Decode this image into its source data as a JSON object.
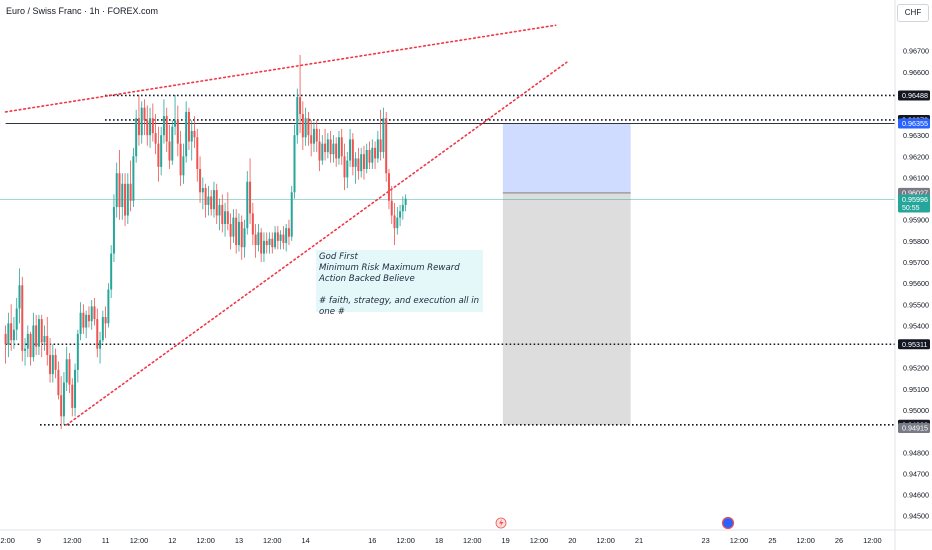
{
  "header": {
    "symbol_title": "Euro / Swiss Franc · 1h · FOREX.com",
    "currency": "CHF"
  },
  "note": {
    "lines": [
      "God First",
      "Minimum Risk Maximum Reward",
      "Action Backed Believe",
      "",
      "# faith, strategy, and execution all in",
      "one #"
    ]
  },
  "colors": {
    "bull": "#26a69a",
    "bear": "#ef5350",
    "trendline": "#f23645",
    "level_line": "#131722",
    "profit_zone": "#c7d6ff",
    "loss_zone": "#d9d9d9",
    "current_price_line": "#26a69a"
  },
  "chart_data": {
    "type": "candlestick",
    "ylim": [
      0.9443,
      0.9679
    ],
    "y_ticks": [
      "0.96700",
      "0.96600",
      "0.96300",
      "0.96200",
      "0.96100",
      "0.95900",
      "0.95800",
      "0.95700",
      "0.95600",
      "0.95500",
      "0.95400",
      "0.95200",
      "0.95100",
      "0.95000",
      "0.94800",
      "0.94700",
      "0.94600",
      "0.94500"
    ],
    "x_ticks": [
      {
        "label": "12:00",
        "bar": 0
      },
      {
        "label": "9",
        "bar": 12
      },
      {
        "label": "12:00",
        "bar": 24
      },
      {
        "label": "11",
        "bar": 36
      },
      {
        "label": "12:00",
        "bar": 48
      },
      {
        "label": "12",
        "bar": 60
      },
      {
        "label": "12:00",
        "bar": 72
      },
      {
        "label": "13",
        "bar": 84
      },
      {
        "label": "12:00",
        "bar": 96
      },
      {
        "label": "14",
        "bar": 108
      },
      {
        "label": "16",
        "bar": 132
      },
      {
        "label": "12:00",
        "bar": 144
      },
      {
        "label": "18",
        "bar": 156
      },
      {
        "label": "12:00",
        "bar": 168
      },
      {
        "label": "19",
        "bar": 180
      },
      {
        "label": "12:00",
        "bar": 192
      },
      {
        "label": "20",
        "bar": 204
      },
      {
        "label": "12:00",
        "bar": 216
      },
      {
        "label": "21",
        "bar": 228
      },
      {
        "label": "23",
        "bar": 252
      },
      {
        "label": "12:00",
        "bar": 264
      },
      {
        "label": "25",
        "bar": 276
      },
      {
        "label": "12:00",
        "bar": 288
      },
      {
        "label": "26",
        "bar": 300
      },
      {
        "label": "12:00",
        "bar": 312
      }
    ],
    "price_labels": [
      {
        "value": 0.96488,
        "label": "0.96488",
        "bg": "#131722",
        "fg": "#ffffff"
      },
      {
        "value": 0.96372,
        "label": "0.96372",
        "bg": "#131722",
        "fg": "#ffffff"
      },
      {
        "value": 0.96355,
        "label": "0.96355",
        "bg": "#2962ff",
        "fg": "#ffffff"
      },
      {
        "value": 0.96027,
        "label": "0.96027",
        "bg": "#787b86",
        "fg": "#ffffff"
      },
      {
        "value": 0.95996,
        "label": "0.95996",
        "bg": "#26a69a",
        "fg": "#ffffff",
        "sub": "50:55"
      },
      {
        "value": 0.95311,
        "label": "0.95311",
        "bg": "#131722",
        "fg": "#ffffff"
      },
      {
        "value": 0.9493,
        "label": "0.94930",
        "bg": "#131722",
        "fg": "#ffffff"
      },
      {
        "value": 0.94915,
        "label": "0.94915",
        "bg": "#787b86",
        "fg": "#ffffff"
      }
    ],
    "horizontal_levels": [
      {
        "value": 0.96488,
        "x_start_bar": 38
      },
      {
        "value": 0.96372,
        "x_start_bar": 38
      },
      {
        "value": 0.96355,
        "x_start_bar": 0,
        "solid": true
      },
      {
        "value": 0.95311,
        "x_start_bar": 0
      },
      {
        "value": 0.9493,
        "x_start_bar": 14
      }
    ],
    "trendlines": [
      {
        "from": [
          0,
          0.9641
        ],
        "to": [
          198,
          0.9682
        ]
      },
      {
        "from": [
          22,
          0.9493
        ],
        "to": [
          202,
          0.96645
        ]
      }
    ],
    "position": {
      "entry": 0.96027,
      "target": 0.96355,
      "stop": 0.9493,
      "bar_start": 179,
      "bar_end": 225
    },
    "current_price": 0.95996,
    "candles": [
      [
        0.9536,
        0.954,
        0.9522,
        0.9531
      ],
      [
        0.9531,
        0.9546,
        0.9525,
        0.9541
      ],
      [
        0.9541,
        0.955,
        0.9528,
        0.9533
      ],
      [
        0.9533,
        0.9544,
        0.9529,
        0.9538
      ],
      [
        0.9538,
        0.9553,
        0.9533,
        0.9548
      ],
      [
        0.9548,
        0.9567,
        0.9541,
        0.9559
      ],
      [
        0.9559,
        0.9563,
        0.9523,
        0.9528
      ],
      [
        0.9528,
        0.9534,
        0.9521,
        0.9529
      ],
      [
        0.9529,
        0.954,
        0.9525,
        0.9536
      ],
      [
        0.9536,
        0.9537,
        0.9521,
        0.9525
      ],
      [
        0.9525,
        0.9546,
        0.9523,
        0.954
      ],
      [
        0.954,
        0.9545,
        0.9526,
        0.953
      ],
      [
        0.953,
        0.9545,
        0.9526,
        0.9543
      ],
      [
        0.9543,
        0.9545,
        0.9525,
        0.9532
      ],
      [
        0.9532,
        0.954,
        0.9528,
        0.9535
      ],
      [
        0.9535,
        0.9544,
        0.9521,
        0.9526
      ],
      [
        0.9526,
        0.9534,
        0.9513,
        0.9517
      ],
      [
        0.9517,
        0.9531,
        0.9513,
        0.9526
      ],
      [
        0.9526,
        0.9529,
        0.9515,
        0.9519
      ],
      [
        0.9519,
        0.9523,
        0.9505,
        0.9507
      ],
      [
        0.9507,
        0.9516,
        0.9491,
        0.9497
      ],
      [
        0.9497,
        0.9518,
        0.9493,
        0.9513
      ],
      [
        0.9513,
        0.953,
        0.9509,
        0.9524
      ],
      [
        0.9524,
        0.9527,
        0.9508,
        0.9512
      ],
      [
        0.9512,
        0.9515,
        0.9497,
        0.9501
      ],
      [
        0.9501,
        0.9522,
        0.9497,
        0.9519
      ],
      [
        0.9519,
        0.9538,
        0.9513,
        0.9536
      ],
      [
        0.9536,
        0.9551,
        0.9533,
        0.9546
      ],
      [
        0.9546,
        0.955,
        0.9536,
        0.9539
      ],
      [
        0.9539,
        0.9547,
        0.9534,
        0.9545
      ],
      [
        0.9545,
        0.9549,
        0.9539,
        0.9542
      ],
      [
        0.9542,
        0.9552,
        0.9538,
        0.9549
      ],
      [
        0.9549,
        0.9553,
        0.954,
        0.9543
      ],
      [
        0.9543,
        0.9548,
        0.9525,
        0.9529
      ],
      [
        0.9529,
        0.9537,
        0.9522,
        0.9533
      ],
      [
        0.9533,
        0.9547,
        0.9532,
        0.9544
      ],
      [
        0.9544,
        0.9549,
        0.9534,
        0.9541
      ],
      [
        0.9541,
        0.956,
        0.9539,
        0.9557
      ],
      [
        0.9557,
        0.9578,
        0.9553,
        0.9574
      ],
      [
        0.9574,
        0.9602,
        0.957,
        0.9596
      ],
      [
        0.9596,
        0.9617,
        0.9591,
        0.9612
      ],
      [
        0.9612,
        0.9623,
        0.959,
        0.9596
      ],
      [
        0.9596,
        0.9612,
        0.959,
        0.9607
      ],
      [
        0.9607,
        0.9612,
        0.9587,
        0.9592
      ],
      [
        0.9592,
        0.9612,
        0.9588,
        0.9607
      ],
      [
        0.9607,
        0.9618,
        0.9594,
        0.9599
      ],
      [
        0.9599,
        0.9624,
        0.9596,
        0.962
      ],
      [
        0.962,
        0.9642,
        0.9617,
        0.9638
      ],
      [
        0.9638,
        0.9649,
        0.9625,
        0.963
      ],
      [
        0.963,
        0.9646,
        0.9626,
        0.9643
      ],
      [
        0.9643,
        0.9647,
        0.963,
        0.9637
      ],
      [
        0.9637,
        0.9644,
        0.9625,
        0.963
      ],
      [
        0.963,
        0.9643,
        0.9624,
        0.9638
      ],
      [
        0.9638,
        0.9645,
        0.9627,
        0.9631
      ],
      [
        0.9631,
        0.964,
        0.9621,
        0.9626
      ],
      [
        0.9626,
        0.9634,
        0.9608,
        0.9615
      ],
      [
        0.9615,
        0.9634,
        0.9611,
        0.963
      ],
      [
        0.963,
        0.9647,
        0.9626,
        0.9639
      ],
      [
        0.9639,
        0.9643,
        0.9622,
        0.9627
      ],
      [
        0.9627,
        0.9635,
        0.9614,
        0.9618
      ],
      [
        0.9618,
        0.9637,
        0.9616,
        0.9634
      ],
      [
        0.9634,
        0.9649,
        0.963,
        0.9637
      ],
      [
        0.9637,
        0.9644,
        0.962,
        0.9626
      ],
      [
        0.9626,
        0.9632,
        0.9606,
        0.9611
      ],
      [
        0.9611,
        0.9626,
        0.9607,
        0.962
      ],
      [
        0.962,
        0.9646,
        0.9617,
        0.9641
      ],
      [
        0.9641,
        0.9643,
        0.9623,
        0.9627
      ],
      [
        0.9627,
        0.9637,
        0.9618,
        0.9632
      ],
      [
        0.9632,
        0.9639,
        0.9624,
        0.9629
      ],
      [
        0.9629,
        0.9633,
        0.9608,
        0.9614
      ],
      [
        0.9614,
        0.962,
        0.9598,
        0.9603
      ],
      [
        0.9603,
        0.961,
        0.9595,
        0.9605
      ],
      [
        0.9605,
        0.9607,
        0.9591,
        0.9597
      ],
      [
        0.9597,
        0.9606,
        0.9592,
        0.9601
      ],
      [
        0.9601,
        0.9604,
        0.9592,
        0.9595
      ],
      [
        0.9595,
        0.9608,
        0.9591,
        0.9604
      ],
      [
        0.9604,
        0.9607,
        0.9588,
        0.9592
      ],
      [
        0.9592,
        0.96,
        0.9585,
        0.9597
      ],
      [
        0.9597,
        0.9602,
        0.9584,
        0.9588
      ],
      [
        0.9588,
        0.9598,
        0.9582,
        0.9594
      ],
      [
        0.9594,
        0.9603,
        0.9585,
        0.9588
      ],
      [
        0.9588,
        0.9593,
        0.9576,
        0.9582
      ],
      [
        0.9582,
        0.9595,
        0.9579,
        0.9591
      ],
      [
        0.9591,
        0.9595,
        0.9574,
        0.9578
      ],
      [
        0.9578,
        0.9593,
        0.9575,
        0.9589
      ],
      [
        0.9589,
        0.9592,
        0.9571,
        0.9577
      ],
      [
        0.9577,
        0.959,
        0.9572,
        0.9586
      ],
      [
        0.9586,
        0.9613,
        0.9583,
        0.9608
      ],
      [
        0.9608,
        0.9619,
        0.9588,
        0.9593
      ],
      [
        0.9593,
        0.9598,
        0.9578,
        0.9583
      ],
      [
        0.9583,
        0.9588,
        0.9572,
        0.9578
      ],
      [
        0.9578,
        0.9588,
        0.9575,
        0.9584
      ],
      [
        0.9584,
        0.9586,
        0.957,
        0.9574
      ],
      [
        0.9574,
        0.9584,
        0.957,
        0.958
      ],
      [
        0.958,
        0.9584,
        0.9574,
        0.9578
      ],
      [
        0.9578,
        0.9584,
        0.9574,
        0.9581
      ],
      [
        0.9581,
        0.9584,
        0.9574,
        0.9577
      ],
      [
        0.9577,
        0.9587,
        0.9576,
        0.9584
      ],
      [
        0.9584,
        0.9587,
        0.9576,
        0.958
      ],
      [
        0.958,
        0.9585,
        0.9576,
        0.9583
      ],
      [
        0.9583,
        0.9587,
        0.9576,
        0.9579
      ],
      [
        0.9579,
        0.9588,
        0.9575,
        0.9586
      ],
      [
        0.9586,
        0.959,
        0.9578,
        0.9582
      ],
      [
        0.9582,
        0.9606,
        0.958,
        0.9603
      ],
      [
        0.9603,
        0.9635,
        0.96,
        0.963
      ],
      [
        0.963,
        0.9652,
        0.9626,
        0.9648
      ],
      [
        0.9648,
        0.9668,
        0.9631,
        0.964
      ],
      [
        0.964,
        0.9646,
        0.9623,
        0.9629
      ],
      [
        0.9629,
        0.9643,
        0.9625,
        0.9638
      ],
      [
        0.9638,
        0.9641,
        0.9625,
        0.963
      ],
      [
        0.963,
        0.9637,
        0.962,
        0.9626
      ],
      [
        0.9626,
        0.9636,
        0.9622,
        0.9633
      ],
      [
        0.9633,
        0.9637,
        0.9622,
        0.9627
      ],
      [
        0.9627,
        0.9633,
        0.9613,
        0.9618
      ],
      [
        0.9618,
        0.963,
        0.9616,
        0.9626
      ],
      [
        0.9626,
        0.9633,
        0.9618,
        0.9622
      ],
      [
        0.9622,
        0.9631,
        0.9619,
        0.9628
      ],
      [
        0.9628,
        0.9632,
        0.9617,
        0.9621
      ],
      [
        0.9621,
        0.963,
        0.9617,
        0.9626
      ],
      [
        0.9626,
        0.9629,
        0.9615,
        0.9619
      ],
      [
        0.9619,
        0.9632,
        0.9616,
        0.9629
      ],
      [
        0.9629,
        0.9633,
        0.9616,
        0.962
      ],
      [
        0.962,
        0.9626,
        0.9604,
        0.961
      ],
      [
        0.961,
        0.9622,
        0.9605,
        0.9618
      ],
      [
        0.9618,
        0.9633,
        0.9615,
        0.9628
      ],
      [
        0.9628,
        0.9631,
        0.9611,
        0.9615
      ],
      [
        0.9615,
        0.9622,
        0.9607,
        0.9619
      ],
      [
        0.9619,
        0.9624,
        0.9609,
        0.9613
      ],
      [
        0.9613,
        0.9624,
        0.961,
        0.9621
      ],
      [
        0.9621,
        0.9625,
        0.9609,
        0.9614
      ],
      [
        0.9614,
        0.9626,
        0.9612,
        0.9623
      ],
      [
        0.9623,
        0.9627,
        0.9614,
        0.9617
      ],
      [
        0.9617,
        0.9628,
        0.9614,
        0.9624
      ],
      [
        0.9624,
        0.9627,
        0.9614,
        0.9619
      ],
      [
        0.9619,
        0.9632,
        0.9617,
        0.9628
      ],
      [
        0.9628,
        0.9642,
        0.9618,
        0.9622
      ],
      [
        0.9622,
        0.9643,
        0.9619,
        0.9638
      ],
      [
        0.9638,
        0.9641,
        0.9608,
        0.9612
      ],
      [
        0.9612,
        0.9614,
        0.9595,
        0.9599
      ],
      [
        0.9599,
        0.9606,
        0.9588,
        0.9592
      ],
      [
        0.9592,
        0.9598,
        0.9578,
        0.9586
      ],
      [
        0.9586,
        0.9596,
        0.9583,
        0.9591
      ],
      [
        0.9591,
        0.9597,
        0.9587,
        0.9594
      ],
      [
        0.9594,
        0.9601,
        0.959,
        0.9597
      ],
      [
        0.9597,
        0.9602,
        0.9594,
        0.96
      ]
    ]
  }
}
